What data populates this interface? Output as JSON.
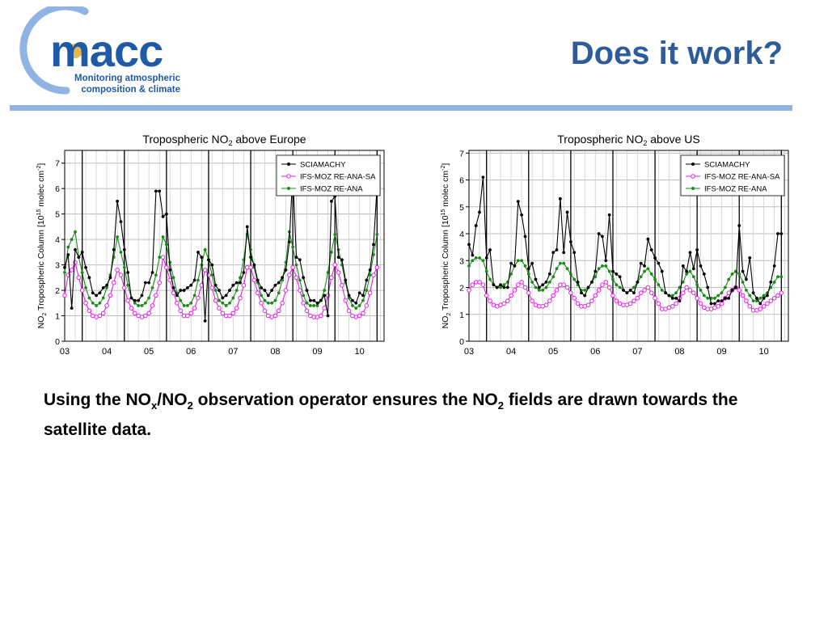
{
  "header": {
    "logo_word": "macc",
    "logo_line1": "Monitoring atmospheric",
    "logo_line2": "composition & climate",
    "title": "Does it work?"
  },
  "colors": {
    "title": "#2e5c9a",
    "rule": "#8fb4e3",
    "logo_blue": "#1f5aa6",
    "logo_ring": "#8fb4e3",
    "logo_sun": "#e9b84c",
    "sciamachy": "#000000",
    "ana_sa": "#e61ee6",
    "ana": "#1a8c1a"
  },
  "caption": {
    "p1": "Using the NO",
    "sub1": "x",
    "p2": "/NO",
    "sub2": "2",
    "p3": " observation operator ensures the NO",
    "sub3": "2",
    "p4": " fields are drawn towards the satellite data."
  },
  "chart_data": [
    {
      "type": "line",
      "title": "Tropospheric NO",
      "title_sub": "2",
      "title_rest": " above Europe",
      "ylabel_pre": "NO",
      "ylabel_sub": "2",
      "ylabel_mid": " Tropospheric Column [10",
      "ylabel_sup": "15",
      "ylabel_post": " molec cm",
      "ylabel_sup2": "-2",
      "ylabel_end": "]",
      "ylim": [
        0,
        7.5
      ],
      "yticks": [
        0,
        1,
        2,
        3,
        4,
        5,
        6,
        7
      ],
      "xlim": [
        0,
        91
      ],
      "xtick_labels": [
        "03",
        "04",
        "05",
        "06",
        "07",
        "08",
        "09",
        "10"
      ],
      "xtick_positions": [
        0,
        12,
        24,
        36,
        48,
        60,
        72,
        84
      ],
      "year_lines": [
        5,
        17,
        29,
        41,
        53,
        65,
        77,
        89
      ],
      "legend_position": "top-right",
      "series": [
        {
          "name": "SCIAMACHY",
          "color": "#000000",
          "marker": "filled",
          "values": [
            2.9,
            3.4,
            1.3,
            3.6,
            3.3,
            3.5,
            2.9,
            2.5,
            1.9,
            1.8,
            1.9,
            2.1,
            2.2,
            2.5,
            3.6,
            5.5,
            4.7,
            3.6,
            2.7,
            1.7,
            1.6,
            1.6,
            1.8,
            2.3,
            2.3,
            2.7,
            5.9,
            5.9,
            4.9,
            5.0,
            2.8,
            2.1,
            1.8,
            2.0,
            2.0,
            2.1,
            2.2,
            2.4,
            3.5,
            3.3,
            0.8,
            3.2,
            3.0,
            2.2,
            2.0,
            1.7,
            1.8,
            2.0,
            2.2,
            2.3,
            2.3,
            2.7,
            4.5,
            3.3,
            3.0,
            2.4,
            2.1,
            2.0,
            1.8,
            2.0,
            2.2,
            2.3,
            2.5,
            2.8,
            3.9,
            6.6,
            3.3,
            3.2,
            2.5,
            2.0,
            1.6,
            1.6,
            1.5,
            1.6,
            1.8,
            1.0,
            5.5,
            5.7,
            3.3,
            3.2,
            2.4,
            1.8,
            1.6,
            1.5,
            1.9,
            1.8,
            2.4,
            2.8,
            3.8,
            6.1
          ]
        },
        {
          "name": "IFS-MOZ RE-ANA-SA",
          "color": "#e61ee6",
          "marker": "open",
          "values": [
            1.8,
            2.6,
            2.8,
            3.1,
            2.5,
            2.0,
            1.5,
            1.2,
            1.0,
            0.95,
            1.0,
            1.1,
            1.4,
            1.8,
            2.3,
            2.8,
            2.6,
            2.1,
            1.6,
            1.3,
            1.1,
            1.0,
            0.95,
            1.0,
            1.1,
            1.4,
            1.8,
            2.3,
            3.3,
            2.9,
            2.4,
            1.9,
            1.5,
            1.2,
            1.0,
            1.0,
            1.1,
            1.3,
            1.7,
            2.2,
            2.8,
            2.6,
            2.1,
            1.6,
            1.3,
            1.1,
            1.0,
            1.0,
            1.1,
            1.3,
            1.7,
            2.2,
            2.9,
            2.9,
            2.4,
            1.9,
            1.5,
            1.2,
            1.0,
            0.95,
            1.0,
            1.2,
            1.5,
            2.0,
            2.6,
            2.9,
            2.5,
            2.0,
            1.5,
            1.2,
            1.0,
            0.95,
            0.95,
            1.0,
            1.3,
            1.8,
            2.5,
            3.0,
            2.7,
            2.2,
            1.6,
            1.2,
            1.0,
            0.95,
            1.0,
            1.1,
            1.4,
            1.9,
            2.6,
            2.9
          ]
        },
        {
          "name": "IFS-MOZ RE-ANA",
          "color": "#1a8c1a",
          "marker": "filled",
          "values": [
            2.7,
            3.7,
            4.0,
            4.3,
            3.3,
            2.7,
            2.1,
            1.7,
            1.5,
            1.4,
            1.5,
            1.7,
            2.1,
            2.6,
            3.3,
            4.1,
            3.5,
            2.9,
            2.2,
            1.7,
            1.5,
            1.4,
            1.4,
            1.5,
            1.7,
            2.1,
            2.6,
            3.3,
            4.1,
            3.8,
            3.1,
            2.5,
            1.9,
            1.6,
            1.4,
            1.4,
            1.5,
            1.8,
            2.4,
            3.0,
            3.6,
            3.2,
            2.6,
            2.0,
            1.6,
            1.5,
            1.4,
            1.5,
            1.7,
            2.0,
            2.5,
            3.2,
            4.2,
            3.6,
            2.9,
            2.3,
            1.8,
            1.6,
            1.5,
            1.5,
            1.6,
            1.9,
            2.4,
            3.1,
            4.3,
            3.7,
            3.0,
            2.4,
            1.8,
            1.5,
            1.4,
            1.4,
            1.4,
            1.6,
            2.0,
            2.7,
            3.5,
            4.2,
            3.6,
            3.0,
            2.3,
            1.7,
            1.4,
            1.3,
            1.4,
            1.6,
            2.0,
            2.6,
            3.4,
            4.2
          ]
        }
      ]
    },
    {
      "type": "line",
      "title": "Tropospheric NO",
      "title_sub": "2",
      "title_rest": " above US",
      "ylabel_pre": "NO",
      "ylabel_sub": "2",
      "ylabel_mid": " Tropospheric Column [10",
      "ylabel_sup": "15",
      "ylabel_post": " molec cm",
      "ylabel_sup2": "-2",
      "ylabel_end": "]",
      "ylim": [
        0,
        7.1
      ],
      "yticks": [
        0,
        1,
        2,
        3,
        4,
        5,
        6,
        7
      ],
      "xlim": [
        0,
        91
      ],
      "xtick_labels": [
        "03",
        "04",
        "05",
        "06",
        "07",
        "08",
        "09",
        "10"
      ],
      "xtick_positions": [
        0,
        12,
        24,
        36,
        48,
        60,
        72,
        84
      ],
      "year_lines": [
        5,
        17,
        29,
        41,
        53,
        65,
        77,
        89
      ],
      "legend_position": "top-right",
      "series": [
        {
          "name": "SCIAMACHY",
          "color": "#000000",
          "marker": "filled",
          "values": [
            3.6,
            3.2,
            4.3,
            4.8,
            6.1,
            3.1,
            3.4,
            2.1,
            2.0,
            2.1,
            2.0,
            2.0,
            2.9,
            2.8,
            5.2,
            4.7,
            3.9,
            2.7,
            2.9,
            2.3,
            2.0,
            2.1,
            2.2,
            2.5,
            3.3,
            3.4,
            5.3,
            3.3,
            4.8,
            3.7,
            3.3,
            2.2,
            1.8,
            1.7,
            2.0,
            2.2,
            2.6,
            4.0,
            3.9,
            3.0,
            4.7,
            2.6,
            2.5,
            2.4,
            1.9,
            1.8,
            1.9,
            1.8,
            2.2,
            2.9,
            2.8,
            3.8,
            3.4,
            3.1,
            2.9,
            2.6,
            1.8,
            1.7,
            1.6,
            1.6,
            1.5,
            2.8,
            2.6,
            3.3,
            2.7,
            3.4,
            2.8,
            2.5,
            2.0,
            1.4,
            1.4,
            1.5,
            1.5,
            1.6,
            1.6,
            1.9,
            2.0,
            4.3,
            2.6,
            2.3,
            3.1,
            1.8,
            1.6,
            1.4,
            1.6,
            1.7,
            2.2,
            2.8,
            4.0,
            4.0
          ]
        },
        {
          "name": "IFS-MOZ RE-ANA-SA",
          "color": "#e61ee6",
          "marker": "open",
          "values": [
            1.9,
            2.1,
            2.2,
            2.2,
            2.1,
            1.7,
            1.5,
            1.35,
            1.3,
            1.35,
            1.4,
            1.5,
            1.7,
            1.9,
            2.1,
            2.2,
            2.0,
            1.8,
            1.5,
            1.35,
            1.3,
            1.3,
            1.35,
            1.5,
            1.7,
            1.9,
            2.1,
            2.1,
            2.0,
            1.8,
            1.6,
            1.4,
            1.3,
            1.3,
            1.35,
            1.5,
            1.7,
            1.9,
            2.1,
            2.2,
            2.0,
            1.7,
            1.5,
            1.4,
            1.35,
            1.35,
            1.4,
            1.5,
            1.6,
            1.8,
            1.9,
            2.0,
            1.8,
            1.6,
            1.4,
            1.2,
            1.2,
            1.25,
            1.3,
            1.4,
            1.6,
            1.8,
            2.0,
            1.9,
            1.8,
            1.6,
            1.4,
            1.25,
            1.2,
            1.2,
            1.25,
            1.3,
            1.4,
            1.6,
            1.8,
            1.9,
            2.0,
            1.9,
            1.7,
            1.5,
            1.3,
            1.15,
            1.15,
            1.2,
            1.3,
            1.4,
            1.5,
            1.6,
            1.7,
            1.8
          ]
        },
        {
          "name": "IFS-MOZ RE-ANA",
          "color": "#1a8c1a",
          "marker": "filled",
          "values": [
            2.8,
            3.0,
            3.1,
            3.1,
            3.0,
            2.6,
            2.3,
            2.1,
            2.0,
            2.0,
            2.1,
            2.2,
            2.5,
            2.8,
            3.0,
            3.0,
            2.8,
            2.5,
            2.2,
            2.0,
            1.9,
            1.9,
            2.0,
            2.2,
            2.4,
            2.7,
            2.9,
            2.9,
            2.7,
            2.5,
            2.3,
            2.1,
            1.9,
            1.9,
            2.0,
            2.2,
            2.4,
            2.7,
            2.8,
            2.8,
            2.6,
            2.3,
            2.1,
            2.0,
            1.9,
            1.8,
            1.9,
            2.0,
            2.2,
            2.4,
            2.6,
            2.7,
            2.5,
            2.3,
            2.1,
            1.9,
            1.8,
            1.7,
            1.7,
            1.8,
            2.0,
            2.2,
            2.5,
            2.6,
            2.4,
            2.1,
            1.9,
            1.7,
            1.6,
            1.6,
            1.6,
            1.7,
            1.8,
            2.0,
            2.3,
            2.5,
            2.6,
            2.5,
            2.2,
            1.9,
            1.7,
            1.5,
            1.5,
            1.6,
            1.7,
            1.8,
            2.0,
            2.2,
            2.4,
            2.4
          ]
        }
      ]
    }
  ]
}
